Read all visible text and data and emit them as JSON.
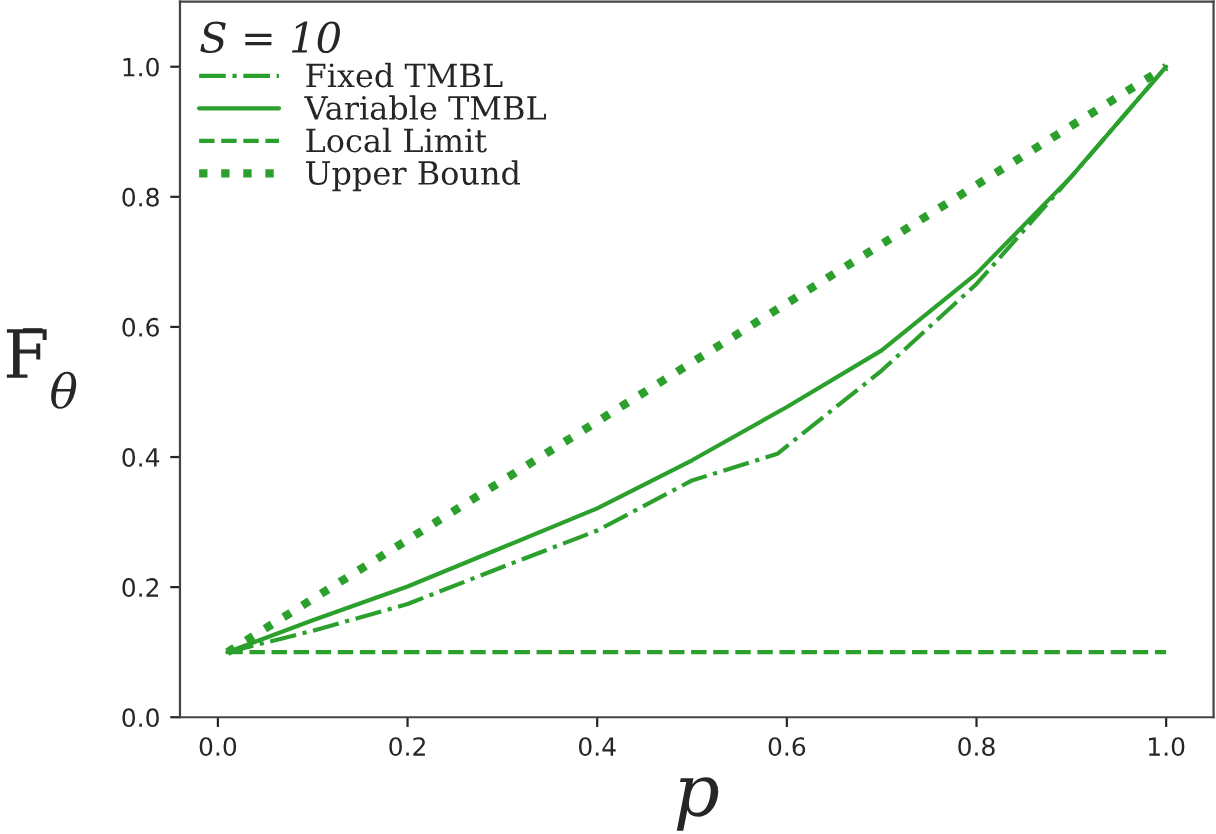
{
  "chart_data": {
    "type": "line",
    "xlabel": "p",
    "ylabel": "F̄$_{θ}$",
    "legend_title": "S = 10",
    "legend": "top left",
    "grid": false,
    "xlim": [
      -0.04,
      1.05
    ],
    "ylim": [
      0,
      1.1
    ],
    "xticks": [
      {
        "value": 0,
        "label": "0.0"
      },
      0.2,
      0.4,
      0.6,
      0.8,
      {
        "value": 1,
        "label": "1.0"
      }
    ],
    "yticks": [
      {
        "value": 0,
        "label": "0.0"
      },
      0.2,
      0.4,
      0.6,
      0.8,
      {
        "value": 1,
        "label": "1.0"
      }
    ],
    "series": [
      {
        "name": "Fixed TMBL",
        "color": "#2ca02c",
        "line_style": "dashdot",
        "x": [
          0.01,
          0.1,
          0.2,
          0.3,
          0.4,
          0.5,
          0.59,
          0.7,
          0.8,
          0.9,
          1.0
        ],
        "values": [
          0.1,
          0.133,
          0.174,
          0.231,
          0.287,
          0.364,
          0.405,
          0.533,
          0.666,
          0.831,
          1.0
        ]
      },
      {
        "name": "Variable TMBL",
        "color": "#2ca02c",
        "line_style": "solid",
        "x": [
          0.01,
          0.1,
          0.2,
          0.3,
          0.4,
          0.5,
          0.6,
          0.7,
          0.8,
          0.9,
          1.0
        ],
        "values": [
          0.1,
          0.149,
          0.201,
          0.261,
          0.321,
          0.395,
          0.477,
          0.564,
          0.682,
          0.831,
          1.0
        ]
      },
      {
        "name": "Local Limit",
        "color": "#2ca02c",
        "line_style": "dashed",
        "x": [
          0.01,
          1.0
        ],
        "values": [
          0.1,
          0.1
        ]
      },
      {
        "name": "Upper Bound",
        "color": "#2ca02c",
        "line_style": "dotted",
        "x": [
          0.01,
          1.0
        ],
        "values": [
          0.1,
          1.0
        ]
      }
    ]
  }
}
